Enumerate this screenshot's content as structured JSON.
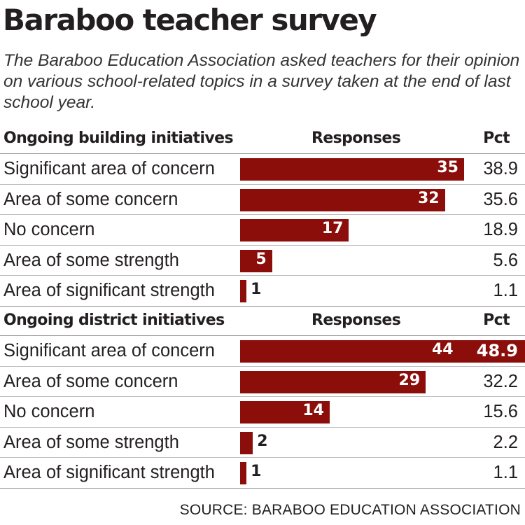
{
  "title": "Baraboo teacher survey",
  "subtitle": "The Baraboo Education Association asked teachers for their opinion on various school-related topics in a survey taken at the end of last school year.",
  "source": "SOURCE: BARABOO EDUCATION ASSOCIATION",
  "colors": {
    "bar": "#8b0e0b",
    "text": "#231f20"
  },
  "chart_data": {
    "type": "bar",
    "title": "Baraboo teacher survey",
    "max_responses": 44,
    "sections": [
      {
        "header": "Ongoing building initiatives",
        "responses_header": "Responses",
        "pct_header": "Pct",
        "rows": [
          {
            "label": "Significant area of concern",
            "responses": 35,
            "pct": "38.9"
          },
          {
            "label": "Area of some concern",
            "responses": 32,
            "pct": "35.6"
          },
          {
            "label": "No concern",
            "responses": 17,
            "pct": "18.9"
          },
          {
            "label": "Area of some strength",
            "responses": 5,
            "pct": "5.6"
          },
          {
            "label": "Area of significant strength",
            "responses": 1,
            "pct": "1.1"
          }
        ]
      },
      {
        "header": "Ongoing district initiatives",
        "responses_header": "Responses",
        "pct_header": "Pct",
        "rows": [
          {
            "label": "Significant area of concern",
            "responses": 44,
            "pct": "48.9",
            "highlight": true
          },
          {
            "label": "Area of some concern",
            "responses": 29,
            "pct": "32.2"
          },
          {
            "label": "No concern",
            "responses": 14,
            "pct": "15.6"
          },
          {
            "label": "Area of some strength",
            "responses": 2,
            "pct": "2.2"
          },
          {
            "label": "Area of significant strength",
            "responses": 1,
            "pct": "1.1"
          }
        ]
      }
    ]
  }
}
